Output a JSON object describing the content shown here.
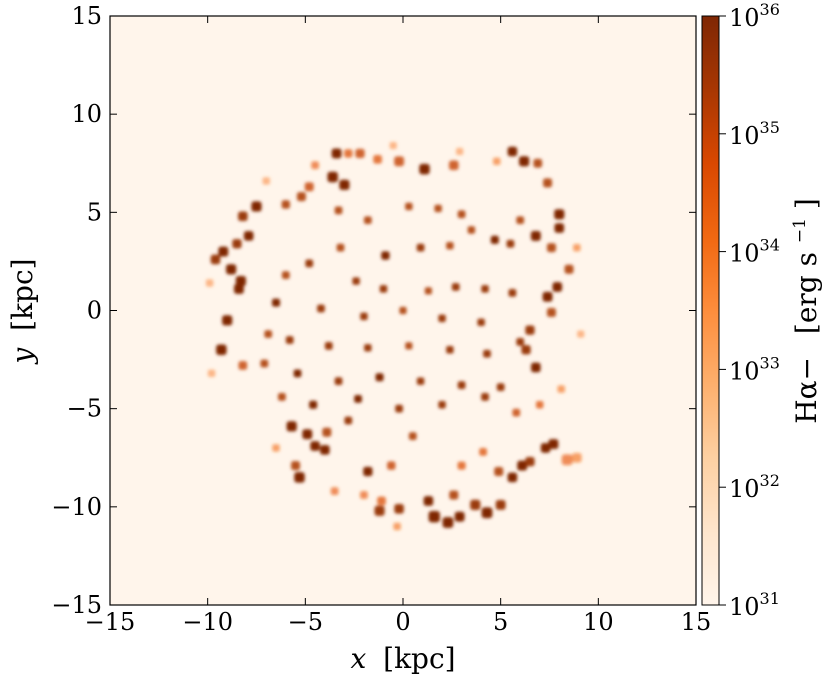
{
  "chart_data": {
    "type": "heatmap",
    "title": "",
    "xlabel": {
      "var": "x",
      "unit": "[kpc]"
    },
    "ylabel": {
      "var": "y",
      "unit": "[kpc]"
    },
    "xlim": [
      -15,
      15
    ],
    "ylim": [
      -15,
      15
    ],
    "xticks": [
      -15,
      -10,
      -5,
      0,
      5,
      10,
      15
    ],
    "yticks": [
      -15,
      -10,
      -5,
      0,
      5,
      10,
      15
    ],
    "xtick_labels": [
      "−15",
      "−10",
      "−5",
      "0",
      "5",
      "10",
      "15"
    ],
    "ytick_labels": [
      "−15",
      "−10",
      "−5",
      "0",
      "5",
      "10",
      "15"
    ],
    "colorbar": {
      "label_main": "Hα−",
      "label_unit": "[erg s",
      "label_exp": "−1",
      "label_close": "]",
      "scale": "log",
      "range": [
        1e+31,
        1e+36
      ],
      "ticks": [
        {
          "base": "10",
          "exp": "31",
          "value": 1e+31
        },
        {
          "base": "10",
          "exp": "32",
          "value": 1e+32
        },
        {
          "base": "10",
          "exp": "33",
          "value": 1e+33
        },
        {
          "base": "10",
          "exp": "34",
          "value": 1e+34
        },
        {
          "base": "10",
          "exp": "35",
          "value": 1e+35
        },
        {
          "base": "10",
          "exp": "36",
          "value": 1e+36
        }
      ],
      "colormap": "Oranges",
      "background_color": "#fff5eb",
      "max_color": "#7f2704"
    },
    "clumps": [
      [
        -3.4,
        8.0,
        1.7,
        1.0
      ],
      [
        -2.8,
        8.0,
        1.2,
        0.6
      ],
      [
        -2.2,
        8.0,
        1.5,
        0.7
      ],
      [
        -1.3,
        7.7,
        1.3,
        0.6
      ],
      [
        -0.2,
        7.6,
        1.7,
        0.7
      ],
      [
        1.1,
        7.2,
        1.9,
        1.0
      ],
      [
        2.6,
        7.4,
        1.6,
        0.7
      ],
      [
        5.6,
        8.1,
        1.6,
        1.0
      ],
      [
        6.2,
        7.6,
        1.8,
        1.0
      ],
      [
        6.9,
        7.5,
        1.3,
        0.8
      ],
      [
        -3.6,
        6.8,
        1.9,
        1.0
      ],
      [
        -3.0,
        6.4,
        1.8,
        1.0
      ],
      [
        -4.8,
        6.3,
        1.4,
        0.7
      ],
      [
        -5.2,
        5.8,
        1.4,
        0.8
      ],
      [
        -6.0,
        5.4,
        1.2,
        0.8
      ],
      [
        -7.5,
        5.3,
        1.8,
        1.0
      ],
      [
        -8.2,
        4.8,
        1.6,
        0.9
      ],
      [
        -7.9,
        3.8,
        1.6,
        1.0
      ],
      [
        -8.5,
        3.4,
        1.5,
        0.9
      ],
      [
        -9.2,
        3.0,
        1.7,
        1.0
      ],
      [
        -9.6,
        2.6,
        1.6,
        0.9
      ],
      [
        -8.8,
        2.1,
        1.8,
        1.0
      ],
      [
        -8.3,
        1.5,
        1.8,
        1.0
      ],
      [
        -8.4,
        1.1,
        1.7,
        1.0
      ],
      [
        -9.0,
        -0.5,
        1.8,
        1.0
      ],
      [
        -9.3,
        -2.0,
        1.9,
        1.0
      ],
      [
        -8.2,
        -2.8,
        1.3,
        0.7
      ],
      [
        7.4,
        6.5,
        1.4,
        0.8
      ],
      [
        8.0,
        4.9,
        1.8,
        1.0
      ],
      [
        8.0,
        4.2,
        1.6,
        1.0
      ],
      [
        6.8,
        3.8,
        1.7,
        1.0
      ],
      [
        7.6,
        3.2,
        1.4,
        0.8
      ],
      [
        8.5,
        2.1,
        1.4,
        0.8
      ],
      [
        7.9,
        1.2,
        1.6,
        1.0
      ],
      [
        7.4,
        0.7,
        1.7,
        1.0
      ],
      [
        7.6,
        -0.1,
        1.4,
        0.8
      ],
      [
        6.5,
        -1.0,
        1.5,
        0.9
      ],
      [
        6.3,
        -2.0,
        1.5,
        0.9
      ],
      [
        6.8,
        -2.9,
        1.6,
        1.0
      ],
      [
        -5.7,
        -5.9,
        1.8,
        1.0
      ],
      [
        -4.9,
        -6.3,
        1.7,
        1.0
      ],
      [
        -4.5,
        -6.9,
        1.6,
        1.0
      ],
      [
        -4.0,
        -7.1,
        1.6,
        1.0
      ],
      [
        -3.9,
        -6.2,
        1.4,
        0.8
      ],
      [
        -5.5,
        -7.9,
        1.4,
        0.8
      ],
      [
        -5.3,
        -8.5,
        1.9,
        1.0
      ],
      [
        -1.8,
        -8.2,
        1.5,
        1.0
      ],
      [
        -0.6,
        -7.9,
        1.2,
        0.7
      ],
      [
        -1.1,
        -9.7,
        1.3,
        0.6
      ],
      [
        -1.2,
        -10.2,
        1.8,
        0.9
      ],
      [
        -0.2,
        -10.1,
        1.6,
        0.9
      ],
      [
        1.3,
        -9.7,
        1.6,
        1.0
      ],
      [
        1.6,
        -10.5,
        2.2,
        1.0
      ],
      [
        2.3,
        -10.8,
        2.0,
        1.0
      ],
      [
        2.9,
        -10.5,
        1.7,
        1.0
      ],
      [
        3.7,
        -9.9,
        1.8,
        0.9
      ],
      [
        4.3,
        -10.3,
        2.0,
        1.0
      ],
      [
        5.0,
        -9.9,
        1.7,
        0.9
      ],
      [
        2.6,
        -9.4,
        1.4,
        0.8
      ],
      [
        5.6,
        -8.5,
        1.6,
        1.0
      ],
      [
        6.1,
        -7.9,
        1.7,
        1.0
      ],
      [
        6.5,
        -7.7,
        1.5,
        0.9
      ],
      [
        7.3,
        -7.0,
        1.6,
        1.0
      ],
      [
        7.7,
        -6.8,
        1.7,
        1.0
      ],
      [
        8.4,
        -7.6,
        2.0,
        0.5
      ],
      [
        8.9,
        -7.5,
        1.6,
        0.4
      ],
      [
        4.9,
        -8.2,
        1.4,
        0.8
      ],
      [
        -1.8,
        4.6,
        1.0,
        0.8
      ],
      [
        -0.9,
        2.8,
        1.2,
        1.0
      ],
      [
        0.9,
        3.2,
        1.0,
        0.9
      ],
      [
        2.4,
        3.3,
        0.9,
        0.8
      ],
      [
        3.5,
        4.1,
        0.9,
        0.8
      ],
      [
        4.7,
        3.6,
        1.1,
        1.0
      ],
      [
        5.5,
        3.4,
        1.0,
        0.9
      ],
      [
        -3.2,
        3.2,
        1.0,
        0.8
      ],
      [
        -4.8,
        2.4,
        1.0,
        0.9
      ],
      [
        -2.4,
        1.5,
        0.9,
        0.9
      ],
      [
        -1.0,
        1.1,
        0.9,
        0.9
      ],
      [
        1.3,
        1.0,
        0.8,
        0.8
      ],
      [
        2.7,
        1.2,
        1.0,
        0.9
      ],
      [
        4.2,
        1.1,
        0.9,
        0.9
      ],
      [
        5.6,
        0.9,
        1.0,
        0.9
      ],
      [
        -6.5,
        0.4,
        1.1,
        1.0
      ],
      [
        -4.2,
        0.1,
        1.0,
        0.9
      ],
      [
        -2.0,
        -0.3,
        0.9,
        0.9
      ],
      [
        0.0,
        0.0,
        0.8,
        0.8
      ],
      [
        2.0,
        -0.4,
        0.9,
        0.9
      ],
      [
        4.0,
        -0.6,
        0.9,
        0.9
      ],
      [
        6.0,
        -1.6,
        1.0,
        0.9
      ],
      [
        -5.8,
        -1.5,
        1.0,
        0.9
      ],
      [
        -3.8,
        -1.8,
        1.0,
        0.9
      ],
      [
        -1.8,
        -1.9,
        0.9,
        0.9
      ],
      [
        0.3,
        -1.8,
        0.8,
        0.8
      ],
      [
        2.4,
        -2.0,
        0.9,
        0.9
      ],
      [
        4.3,
        -2.2,
        1.0,
        0.9
      ],
      [
        -5.4,
        -3.2,
        1.0,
        1.0
      ],
      [
        -3.3,
        -3.6,
        1.0,
        0.9
      ],
      [
        -1.2,
        -3.4,
        1.1,
        1.0
      ],
      [
        0.9,
        -3.6,
        0.9,
        0.9
      ],
      [
        3.0,
        -3.8,
        1.0,
        0.9
      ],
      [
        5.0,
        -3.9,
        1.0,
        0.9
      ],
      [
        -4.6,
        -4.8,
        1.1,
        1.0
      ],
      [
        -2.3,
        -4.5,
        1.0,
        1.0
      ],
      [
        -0.2,
        -5.0,
        1.0,
        0.9
      ],
      [
        2.0,
        -4.8,
        0.9,
        0.9
      ],
      [
        4.2,
        -4.4,
        1.0,
        0.9
      ],
      [
        -2.8,
        -5.6,
        1.0,
        0.9
      ],
      [
        0.5,
        -6.4,
        1.0,
        0.8
      ],
      [
        -3.3,
        5.1,
        1.0,
        0.8
      ],
      [
        0.3,
        5.3,
        0.9,
        0.8
      ],
      [
        1.8,
        5.2,
        0.9,
        0.8
      ],
      [
        3.0,
        4.9,
        1.0,
        0.8
      ],
      [
        6.0,
        4.6,
        1.0,
        0.8
      ],
      [
        -6.0,
        1.8,
        1.0,
        0.8
      ],
      [
        -6.9,
        -1.2,
        1.0,
        0.8
      ],
      [
        -7.1,
        -2.7,
        1.0,
        0.8
      ],
      [
        -6.2,
        -4.4,
        1.0,
        0.8
      ],
      [
        5.8,
        -5.2,
        1.0,
        0.7
      ],
      [
        7.0,
        -4.8,
        0.9,
        0.6
      ],
      [
        -3.5,
        -9.2,
        1.0,
        0.5
      ],
      [
        -2.0,
        -9.4,
        1.0,
        0.5
      ],
      [
        3.0,
        -7.9,
        1.1,
        0.6
      ],
      [
        4.1,
        -7.2,
        1.0,
        0.6
      ],
      [
        -4.5,
        7.4,
        1.0,
        0.5
      ],
      [
        -0.5,
        8.4,
        0.8,
        0.3
      ],
      [
        2.9,
        8.1,
        0.8,
        0.3
      ],
      [
        4.8,
        7.6,
        0.9,
        0.4
      ],
      [
        -7.0,
        6.6,
        0.9,
        0.3
      ],
      [
        -9.9,
        1.4,
        0.9,
        0.3
      ],
      [
        -9.8,
        -3.2,
        0.9,
        0.3
      ],
      [
        8.9,
        3.2,
        0.9,
        0.4
      ],
      [
        9.1,
        -1.2,
        0.8,
        0.3
      ],
      [
        8.1,
        -4.0,
        0.9,
        0.4
      ],
      [
        -6.5,
        -7.0,
        0.9,
        0.4
      ],
      [
        -0.3,
        -11.0,
        0.9,
        0.4
      ]
    ]
  }
}
